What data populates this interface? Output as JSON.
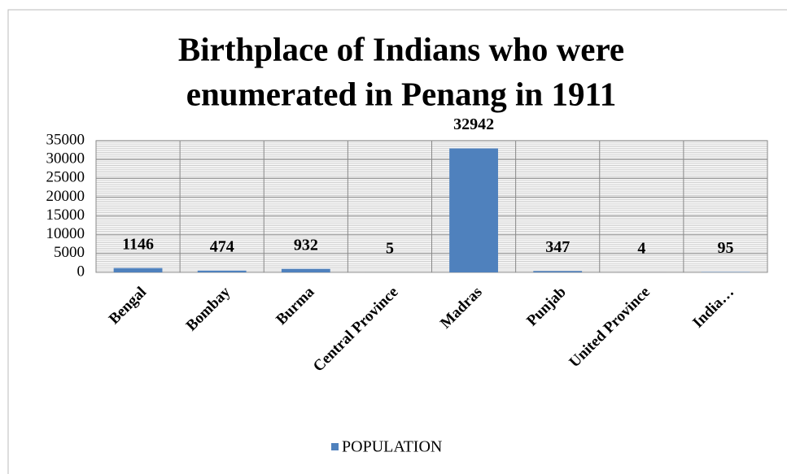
{
  "chart_data": {
    "type": "bar",
    "title": [
      "Birthplace of Indians who were",
      "enumerated in Penang in 1911"
    ],
    "categories": [
      "Bengal",
      "Bombay",
      "Burma",
      "Central Province",
      "Madras",
      "Punjab",
      "United Province",
      "India…"
    ],
    "series": [
      {
        "name": "POPULATION",
        "color": "#4f81bd",
        "values": [
          1146,
          474,
          932,
          5,
          32942,
          347,
          4,
          95
        ]
      }
    ],
    "ylim": [
      0,
      35000
    ],
    "yticks": [
      0,
      5000,
      10000,
      15000,
      20000,
      25000,
      30000,
      35000
    ],
    "grid": true,
    "legend": "bottom"
  }
}
